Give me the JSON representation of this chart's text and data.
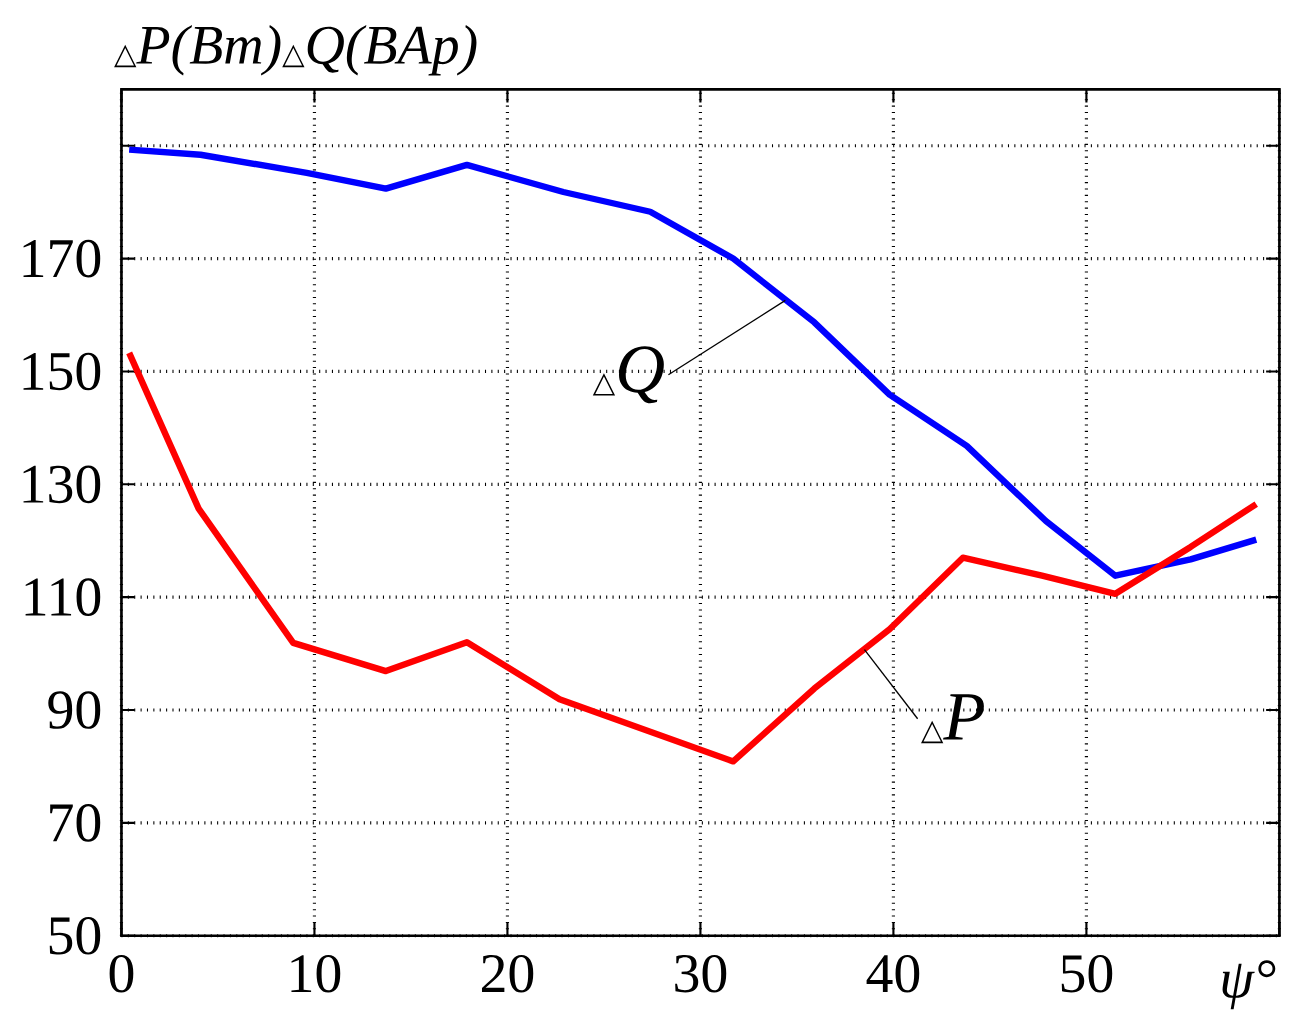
{
  "chart_data": {
    "type": "line",
    "ylabel": "△P(Bm)△Q(BAp)",
    "xlabel": "ψ°",
    "xlim": [
      0,
      60
    ],
    "ylim": [
      50,
      200
    ],
    "xticks": [
      0,
      10,
      20,
      30,
      40,
      50,
      {
        "value": 60,
        "label": null
      }
    ],
    "yticks": [
      50,
      70,
      90,
      110,
      130,
      150,
      170,
      {
        "value": 190,
        "label": null
      }
    ],
    "grid": true,
    "marker": "none",
    "line_style": "solid",
    "series": [
      {
        "color": "#0000ff",
        "x": [
          0.4,
          4.1,
          9.6,
          13.7,
          17.9,
          22.9,
          27.4,
          31.7,
          35.9,
          39.8,
          43.8,
          47.9,
          51.5,
          55.4,
          58.8
        ],
        "values": [
          189.3,
          188.4,
          185.2,
          182.4,
          186.6,
          181.8,
          178.3,
          170.0,
          158.7,
          145.9,
          136.8,
          123.5,
          113.8,
          116.7,
          120.2
        ]
      },
      {
        "color": "#ff0000",
        "x": [
          0.4,
          4.0,
          8.9,
          13.7,
          17.9,
          22.7,
          31.7,
          35.9,
          39.8,
          43.6,
          47.7,
          51.5,
          55.4,
          58.8
        ],
        "values": [
          153.3,
          125.7,
          101.9,
          96.9,
          102.0,
          91.9,
          80.9,
          93.8,
          104.3,
          117.0,
          113.8,
          110.6,
          118.9,
          126.5
        ]
      }
    ],
    "annotations": [
      {
        "text": "△Q",
        "x": 34.4,
        "y": 162.6
      },
      {
        "text": "△P",
        "x": 38.5,
        "y": 100.7
      }
    ]
  }
}
